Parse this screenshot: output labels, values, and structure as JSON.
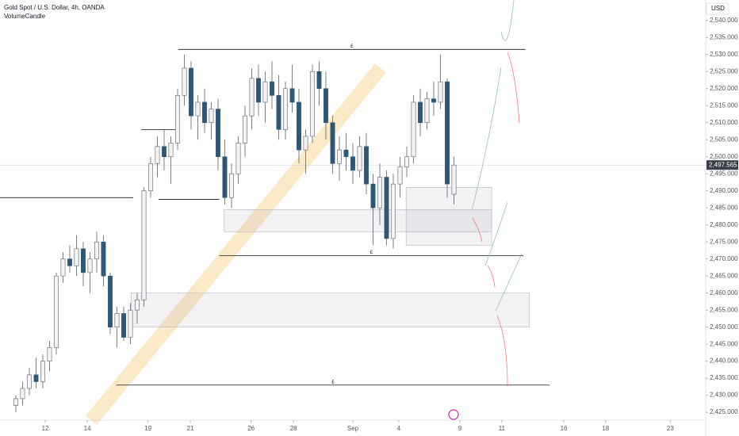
{
  "chart_data": {
    "type": "candlestick",
    "title": "Gold Spot / U.S. Dollar, 4h, OANDA",
    "subtitle": "VolumeCandle",
    "currency": "USD",
    "x": [
      0,
      1,
      2,
      3,
      4,
      5,
      6,
      7,
      8,
      9,
      10,
      11,
      12,
      13,
      14,
      15,
      16,
      17,
      18,
      19,
      20,
      21,
      22,
      23,
      24,
      25,
      26,
      27,
      28,
      29,
      30,
      31,
      32,
      33,
      34,
      35,
      36,
      37,
      38,
      39,
      40,
      41,
      42,
      43,
      44,
      45,
      46,
      47,
      48,
      49,
      50,
      51,
      52,
      53,
      54,
      55,
      56,
      57,
      58,
      59,
      60,
      61,
      62,
      63,
      64,
      65
    ],
    "open": [
      2427,
      2429,
      2432,
      2436,
      2434,
      2440,
      2444,
      2465,
      2470,
      2468,
      2473,
      2466,
      2470,
      2475,
      2465,
      2450,
      2454,
      2447,
      2455,
      2458,
      2490,
      2498,
      2503,
      2500,
      2504,
      2518,
      2526,
      2512,
      2516,
      2510,
      2514,
      2500,
      2488,
      2495,
      2504,
      2512,
      2523,
      2516,
      2522,
      2518,
      2508,
      2520,
      2516,
      2502,
      2506,
      2525,
      2520,
      2510,
      2498,
      2502,
      2500,
      2496,
      2503,
      2492,
      2485,
      2494,
      2476,
      2492,
      2497,
      2500,
      2516,
      2510,
      2517,
      2516,
      2522,
      2489
    ],
    "high": [
      2430,
      2434,
      2438,
      2441,
      2442,
      2446,
      2466,
      2472,
      2474,
      2477,
      2475,
      2472,
      2478,
      2477,
      2466,
      2456,
      2456,
      2457,
      2460,
      2491,
      2500,
      2506,
      2508,
      2506,
      2520,
      2530,
      2528,
      2518,
      2520,
      2516,
      2517,
      2505,
      2498,
      2506,
      2515,
      2526,
      2527,
      2525,
      2528,
      2524,
      2522,
      2527,
      2520,
      2508,
      2527,
      2528,
      2525,
      2512,
      2506,
      2507,
      2504,
      2506,
      2507,
      2495,
      2498,
      2496,
      2495,
      2500,
      2503,
      2518,
      2520,
      2519,
      2522,
      2530,
      2523,
      2500
    ],
    "low": [
      2425,
      2427,
      2430,
      2432,
      2432,
      2437,
      2442,
      2463,
      2466,
      2465,
      2462,
      2460,
      2466,
      2462,
      2448,
      2444,
      2446,
      2445,
      2451,
      2456,
      2488,
      2494,
      2496,
      2492,
      2502,
      2515,
      2508,
      2505,
      2507,
      2505,
      2496,
      2486,
      2485,
      2492,
      2500,
      2508,
      2512,
      2510,
      2514,
      2505,
      2505,
      2513,
      2498,
      2495,
      2504,
      2515,
      2505,
      2495,
      2493,
      2496,
      2492,
      2494,
      2489,
      2474,
      2480,
      2474,
      2473,
      2488,
      2494,
      2498,
      2506,
      2508,
      2512,
      2514,
      2488,
      2486
    ],
    "close": [
      2429,
      2432,
      2436,
      2434,
      2440,
      2444,
      2465,
      2470,
      2468,
      2473,
      2466,
      2470,
      2475,
      2465,
      2450,
      2454,
      2447,
      2455,
      2458,
      2490,
      2498,
      2503,
      2500,
      2504,
      2518,
      2526,
      2512,
      2516,
      2510,
      2514,
      2500,
      2488,
      2495,
      2504,
      2512,
      2523,
      2516,
      2522,
      2518,
      2508,
      2520,
      2516,
      2502,
      2506,
      2525,
      2520,
      2510,
      2498,
      2502,
      2500,
      2496,
      2503,
      2492,
      2485,
      2494,
      2476,
      2492,
      2497,
      2500,
      2516,
      2510,
      2517,
      2516,
      2522,
      2492,
      2497.565
    ],
    "up_color": "#f4f4f4",
    "down_color": "#2d5879",
    "xlim": [
      -2.35,
      102.35
    ],
    "xticks": [
      {
        "value": 4.35,
        "label": "12"
      },
      {
        "value": 10.6,
        "label": "14"
      },
      {
        "value": 19.6,
        "label": "19"
      },
      {
        "value": 25.9,
        "label": "21"
      },
      {
        "value": 34.9,
        "label": "26"
      },
      {
        "value": 41.2,
        "label": "28"
      },
      {
        "value": 50,
        "label": "Sep"
      },
      {
        "value": 56.8,
        "label": "4"
      },
      {
        "value": 65.9,
        "label": "9"
      },
      {
        "value": 72.1,
        "label": "11"
      },
      {
        "value": 81.3,
        "label": "16"
      },
      {
        "value": 87.5,
        "label": "18"
      },
      {
        "value": 97.1,
        "label": "23"
      }
    ],
    "ylim": [
      2422.7,
      2546
    ],
    "yticks": [
      {
        "value": 2425,
        "label": "2,425.000"
      },
      {
        "value": 2430,
        "label": "2,430.000"
      },
      {
        "value": 2435,
        "label": "2,435.000"
      },
      {
        "value": 2440,
        "label": "2,440.000"
      },
      {
        "value": 2445,
        "label": "2,445.000"
      },
      {
        "value": 2450,
        "label": "2,450.000"
      },
      {
        "value": 2455,
        "label": "2,455.000"
      },
      {
        "value": 2460,
        "label": "2,460.000"
      },
      {
        "value": 2465,
        "label": "2,465.000"
      },
      {
        "value": 2470,
        "label": "2,470.000"
      },
      {
        "value": 2475,
        "label": "2,475.000"
      },
      {
        "value": 2480,
        "label": "2,480.000"
      },
      {
        "value": 2485,
        "label": "2,485.000"
      },
      {
        "value": 2490,
        "label": "2,490.000"
      },
      {
        "value": 2495,
        "label": "2,495.000"
      },
      {
        "value": 2500,
        "label": "2,500.000"
      },
      {
        "value": 2505,
        "label": "2,505.000"
      },
      {
        "value": 2510,
        "label": "2,510.000"
      },
      {
        "value": 2515,
        "label": "2,515.000"
      },
      {
        "value": 2520,
        "label": "2,520.000"
      },
      {
        "value": 2525,
        "label": "2,525.000"
      },
      {
        "value": 2530,
        "label": "2,530.000"
      },
      {
        "value": 2535,
        "label": "2,535.000"
      },
      {
        "value": 2540,
        "label": "2,540.000"
      }
    ],
    "last_price": {
      "value": 2497.565,
      "label": "2,497.565"
    },
    "levels": [
      {
        "x": [
          -2.35,
          17.4
        ],
        "price": 2488
      },
      {
        "x": [
          24.1,
          75.6
        ],
        "price": 2531.5,
        "label": "£"
      },
      {
        "x": [
          30.2,
          75.3
        ],
        "price": 2471,
        "label": "£"
      },
      {
        "x": [
          14.9,
          79.2
        ],
        "price": 2433,
        "label": "£"
      },
      {
        "x": [
          18.6,
          24.1
        ],
        "price": 2508
      },
      {
        "x": [
          21.2,
          30.2
        ],
        "price": 2487.5
      }
    ],
    "zones": [
      {
        "x": [
          30.9,
          70.6
        ],
        "price": [
          2478,
          2484.5
        ]
      },
      {
        "x": [
          57.9,
          70.6
        ],
        "price": [
          2474,
          2491
        ]
      },
      {
        "x": [
          17.1,
          76.2
        ],
        "price": [
          2450,
          2460
        ]
      }
    ],
    "trend_band": {
      "x": [
        11.2,
        54.1
      ],
      "price": [
        2422.7,
        2526
      ]
    }
  }
}
